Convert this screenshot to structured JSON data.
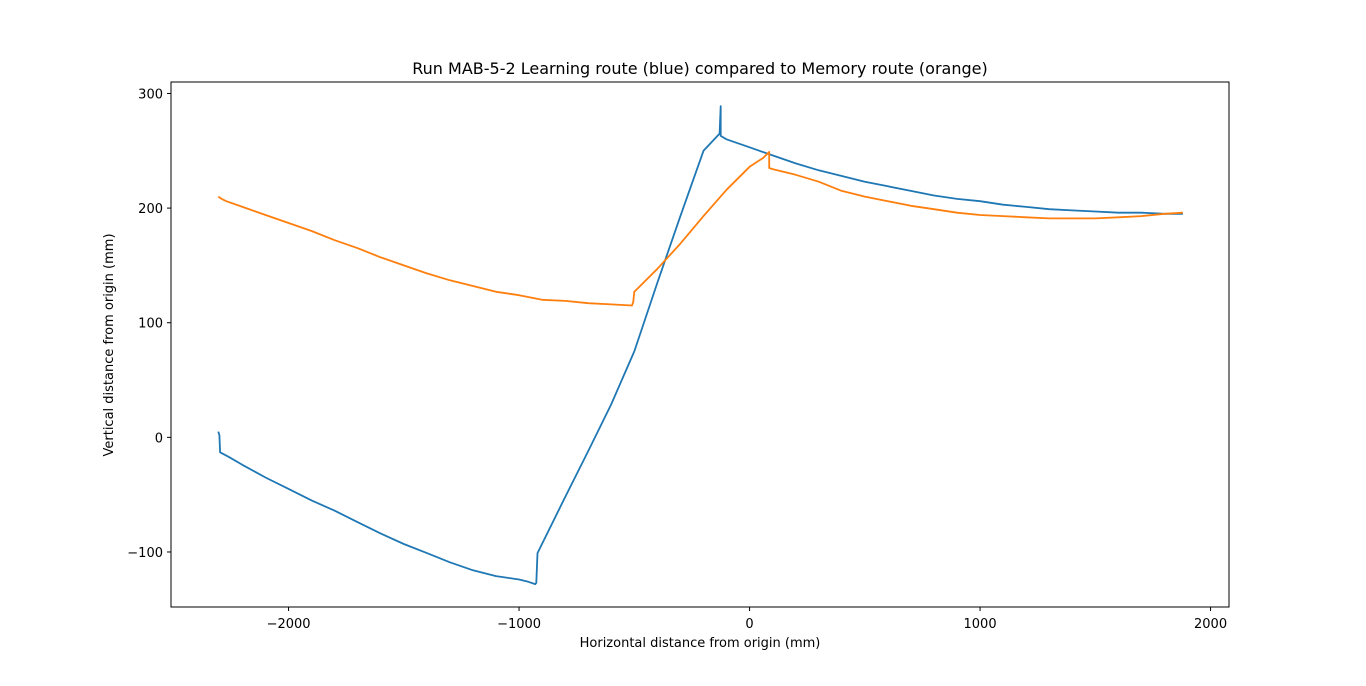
{
  "chart_data": {
    "type": "line",
    "title": "Run MAB-5-2 Learning route (blue) compared to Memory route (orange)",
    "xlabel": "Horizontal distance from origin (mm)",
    "ylabel": "Vertical distance from origin (mm)",
    "xlim": [
      -2510,
      2080
    ],
    "ylim": [
      -148,
      310
    ],
    "xticks": [
      -2000,
      -1000,
      0,
      1000,
      2000
    ],
    "yticks": [
      -100,
      0,
      100,
      200,
      300
    ],
    "xtick_labels": [
      "−2000",
      "−1000",
      "0",
      "1000",
      "2000"
    ],
    "ytick_labels": [
      "−100",
      "0",
      "100",
      "200",
      "300"
    ],
    "grid": false,
    "series": [
      {
        "color": "#1f77b4",
        "x": [
          -2305,
          -2300,
          -2297,
          -2260,
          -2200,
          -2100,
          -2000,
          -1900,
          -1800,
          -1700,
          -1600,
          -1500,
          -1400,
          -1300,
          -1200,
          -1100,
          -1000,
          -960,
          -930,
          -925,
          -920,
          -800,
          -700,
          -600,
          -500,
          -400,
          -300,
          -200,
          -130,
          -125,
          -125,
          -100,
          0,
          100,
          200,
          300,
          400,
          500,
          600,
          700,
          800,
          900,
          1000,
          1100,
          1200,
          1300,
          1400,
          1500,
          1600,
          1700,
          1800,
          1880
        ],
        "y": [
          5,
          2,
          -13,
          -17,
          -24,
          -35,
          -45,
          -55,
          -64,
          -74,
          -84,
          -93,
          -101,
          -109,
          -116,
          -121,
          -124,
          -126,
          -128,
          -127,
          -101,
          -52,
          -12,
          29,
          75,
          135,
          193,
          250,
          265,
          289,
          263,
          260,
          253,
          246,
          239,
          233,
          228,
          223,
          219,
          215,
          211,
          208,
          206,
          203,
          201,
          199,
          198,
          197,
          196,
          196,
          195,
          195
        ]
      },
      {
        "color": "#ff7f0e",
        "x": [
          -2305,
          -2290,
          -2270,
          -2200,
          -2100,
          -2000,
          -1900,
          -1800,
          -1700,
          -1600,
          -1500,
          -1400,
          -1300,
          -1200,
          -1100,
          -1000,
          -900,
          -800,
          -700,
          -600,
          -510,
          -505,
          -500,
          -400,
          -300,
          -200,
          -100,
          0,
          60,
          85,
          85,
          100,
          200,
          300,
          400,
          500,
          600,
          700,
          800,
          900,
          1000,
          1100,
          1200,
          1300,
          1400,
          1500,
          1600,
          1700,
          1800,
          1880
        ],
        "y": [
          210,
          208,
          206,
          201,
          194,
          187,
          180,
          172,
          165,
          157,
          150,
          143,
          137,
          132,
          127,
          124,
          120,
          119,
          117,
          116,
          115,
          118,
          127,
          147,
          169,
          193,
          216,
          236,
          244,
          249,
          235,
          234,
          229,
          223,
          215,
          210,
          206,
          202,
          199,
          196,
          194,
          193,
          192,
          191,
          191,
          191,
          192,
          193,
          195,
          196
        ]
      }
    ]
  }
}
